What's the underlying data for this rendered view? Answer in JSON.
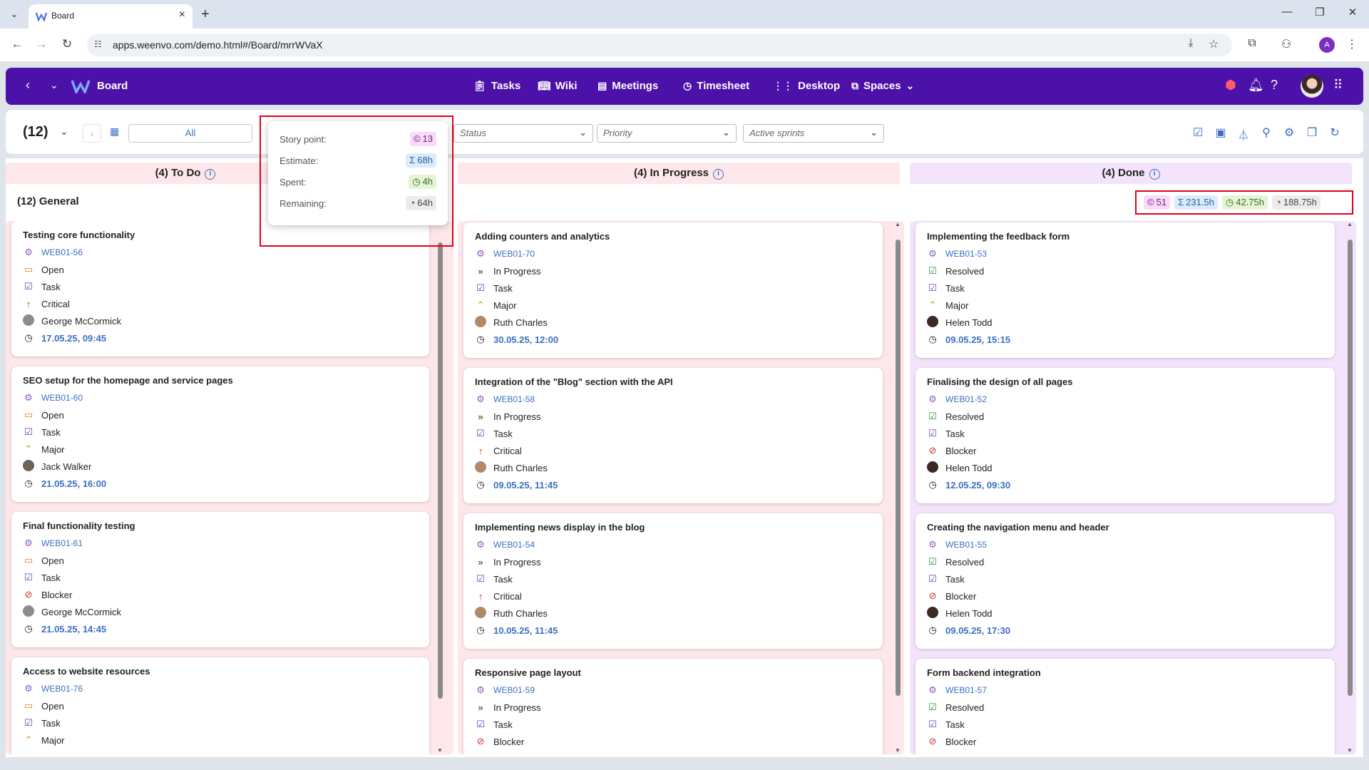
{
  "browser": {
    "tab_title": "Board",
    "url": "apps.weenvo.com/demo.html#/Board/mrrWVaX",
    "profile_initial": "A"
  },
  "app": {
    "brand": "Board",
    "nav": [
      {
        "label": "Tasks",
        "icon": "clipboard-icon"
      },
      {
        "label": "Wiki",
        "icon": "book-icon"
      },
      {
        "label": "Meetings",
        "icon": "meetings-icon"
      },
      {
        "label": "Timesheet",
        "icon": "timesheet-icon"
      },
      {
        "label": "Desktop",
        "icon": "grid-icon"
      },
      {
        "label": "Spaces",
        "icon": "spaces-icon"
      }
    ]
  },
  "toolbar": {
    "count": "(12)",
    "period": "All",
    "status_placeholder": "Status",
    "priority_placeholder": "Priority",
    "sprint_placeholder": "Active sprints"
  },
  "popover": {
    "story_point_label": "Story point:",
    "story_point_value": "13",
    "estimate_label": "Estimate:",
    "estimate_value": "68h",
    "spent_label": "Spent:",
    "spent_value": "4h",
    "remaining_label": "Remaining:",
    "remaining_value": "64h"
  },
  "board": {
    "group_title": "(12) General",
    "totals": {
      "story": "51",
      "estimate": "231.5h",
      "spent": "42.75h",
      "remaining": "188.75h"
    },
    "columns": [
      {
        "title": "(4) To Do",
        "cards": [
          {
            "title": "Testing core functionality",
            "key": "WEB01-56",
            "status": "Open",
            "type": "Task",
            "priority": "Critical",
            "assignee": "George McCormick",
            "due": "17.05.25, 09:45"
          },
          {
            "title": "SEO setup for the homepage and service pages",
            "key": "WEB01-60",
            "status": "Open",
            "type": "Task",
            "priority": "Major",
            "assignee": "Jack Walker",
            "due": "21.05.25, 16:00"
          },
          {
            "title": "Final functionality testing",
            "key": "WEB01-61",
            "status": "Open",
            "type": "Task",
            "priority": "Blocker",
            "assignee": "George McCormick",
            "due": "21.05.25, 14:45"
          },
          {
            "title": "Access to website resources",
            "key": "WEB01-76",
            "status": "Open",
            "type": "Task",
            "priority": "Major",
            "assignee": "",
            "due": ""
          }
        ]
      },
      {
        "title": "(4) In Progress",
        "cards": [
          {
            "title": "Adding counters and analytics",
            "key": "WEB01-70",
            "status": "In Progress",
            "type": "Task",
            "priority": "Major",
            "assignee": "Ruth Charles",
            "due": "30.05.25, 12:00"
          },
          {
            "title": "Integration of the \"Blog\" section with the API",
            "key": "WEB01-58",
            "status": "In Progress",
            "type": "Task",
            "priority": "Critical",
            "assignee": "Ruth Charles",
            "due": "09.05.25, 11:45"
          },
          {
            "title": "Implementing news display in the blog",
            "key": "WEB01-54",
            "status": "In Progress",
            "type": "Task",
            "priority": "Critical",
            "assignee": "Ruth Charles",
            "due": "10.05.25, 11:45"
          },
          {
            "title": "Responsive page layout",
            "key": "WEB01-59",
            "status": "In Progress",
            "type": "Task",
            "priority": "Blocker",
            "assignee": "",
            "due": ""
          }
        ]
      },
      {
        "title": "(4) Done",
        "cards": [
          {
            "title": "Implementing the feedback form",
            "key": "WEB01-53",
            "status": "Resolved",
            "type": "Task",
            "priority": "Major",
            "assignee": "Helen Todd",
            "due": "09.05.25, 15:15"
          },
          {
            "title": "Finalising the design of all pages",
            "key": "WEB01-52",
            "status": "Resolved",
            "type": "Task",
            "priority": "Blocker",
            "assignee": "Helen Todd",
            "due": "12.05.25, 09:30"
          },
          {
            "title": "Creating the navigation menu and header",
            "key": "WEB01-55",
            "status": "Resolved",
            "type": "Task",
            "priority": "Blocker",
            "assignee": "Helen Todd",
            "due": "09.05.25, 17:30"
          },
          {
            "title": "Form backend integration",
            "key": "WEB01-57",
            "status": "Resolved",
            "type": "Task",
            "priority": "Blocker",
            "assignee": "",
            "due": ""
          }
        ]
      }
    ]
  },
  "colors": {
    "brand_purple": "#4b11a8",
    "link_blue": "#3b6fc0",
    "todo_bg": "#fde7ea",
    "inprogress_bg": "#fde7ea",
    "done_bg": "#f3e4fb",
    "highlight_red": "#e0001b"
  }
}
